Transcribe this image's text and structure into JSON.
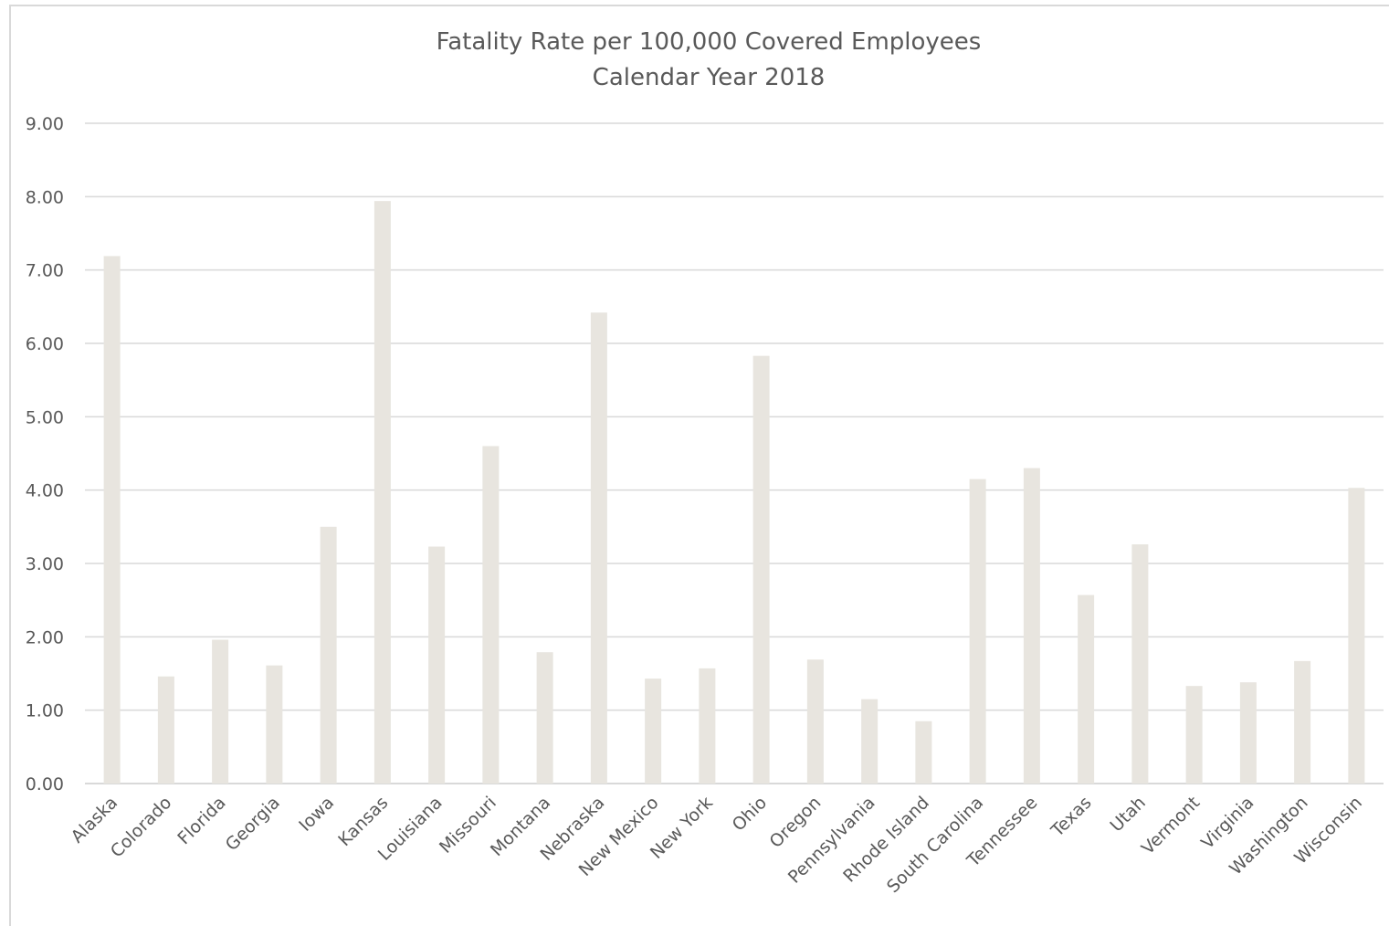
{
  "chart_data": {
    "type": "bar",
    "title": "Fatality Rate per 100,000 Covered Employees",
    "subtitle": "Calendar Year 2018",
    "xlabel": "",
    "ylabel": "",
    "ylim": [
      0,
      9
    ],
    "yticks": [
      "0.00",
      "1.00",
      "2.00",
      "3.00",
      "4.00",
      "5.00",
      "6.00",
      "7.00",
      "8.00",
      "9.00"
    ],
    "grid": true,
    "bar_color": "#e8e5df",
    "categories": [
      "Alaska",
      "Colorado",
      "Florida",
      "Georgia",
      "Iowa",
      "Kansas",
      "Louisiana",
      "Missouri",
      "Montana",
      "Nebraska",
      "New Mexico",
      "New York",
      "Ohio",
      "Oregon",
      "Pennsylvania",
      "Rhode Island",
      "South Carolina",
      "Tennessee",
      "Texas",
      "Utah",
      "Vermont",
      "Virginia",
      "Washington",
      "Wisconsin"
    ],
    "values": [
      7.19,
      1.46,
      1.96,
      1.61,
      3.5,
      7.94,
      3.23,
      4.6,
      1.79,
      6.42,
      1.43,
      1.57,
      5.83,
      1.69,
      1.15,
      0.85,
      4.15,
      4.3,
      2.57,
      3.26,
      1.33,
      1.38,
      1.67,
      4.03
    ]
  }
}
